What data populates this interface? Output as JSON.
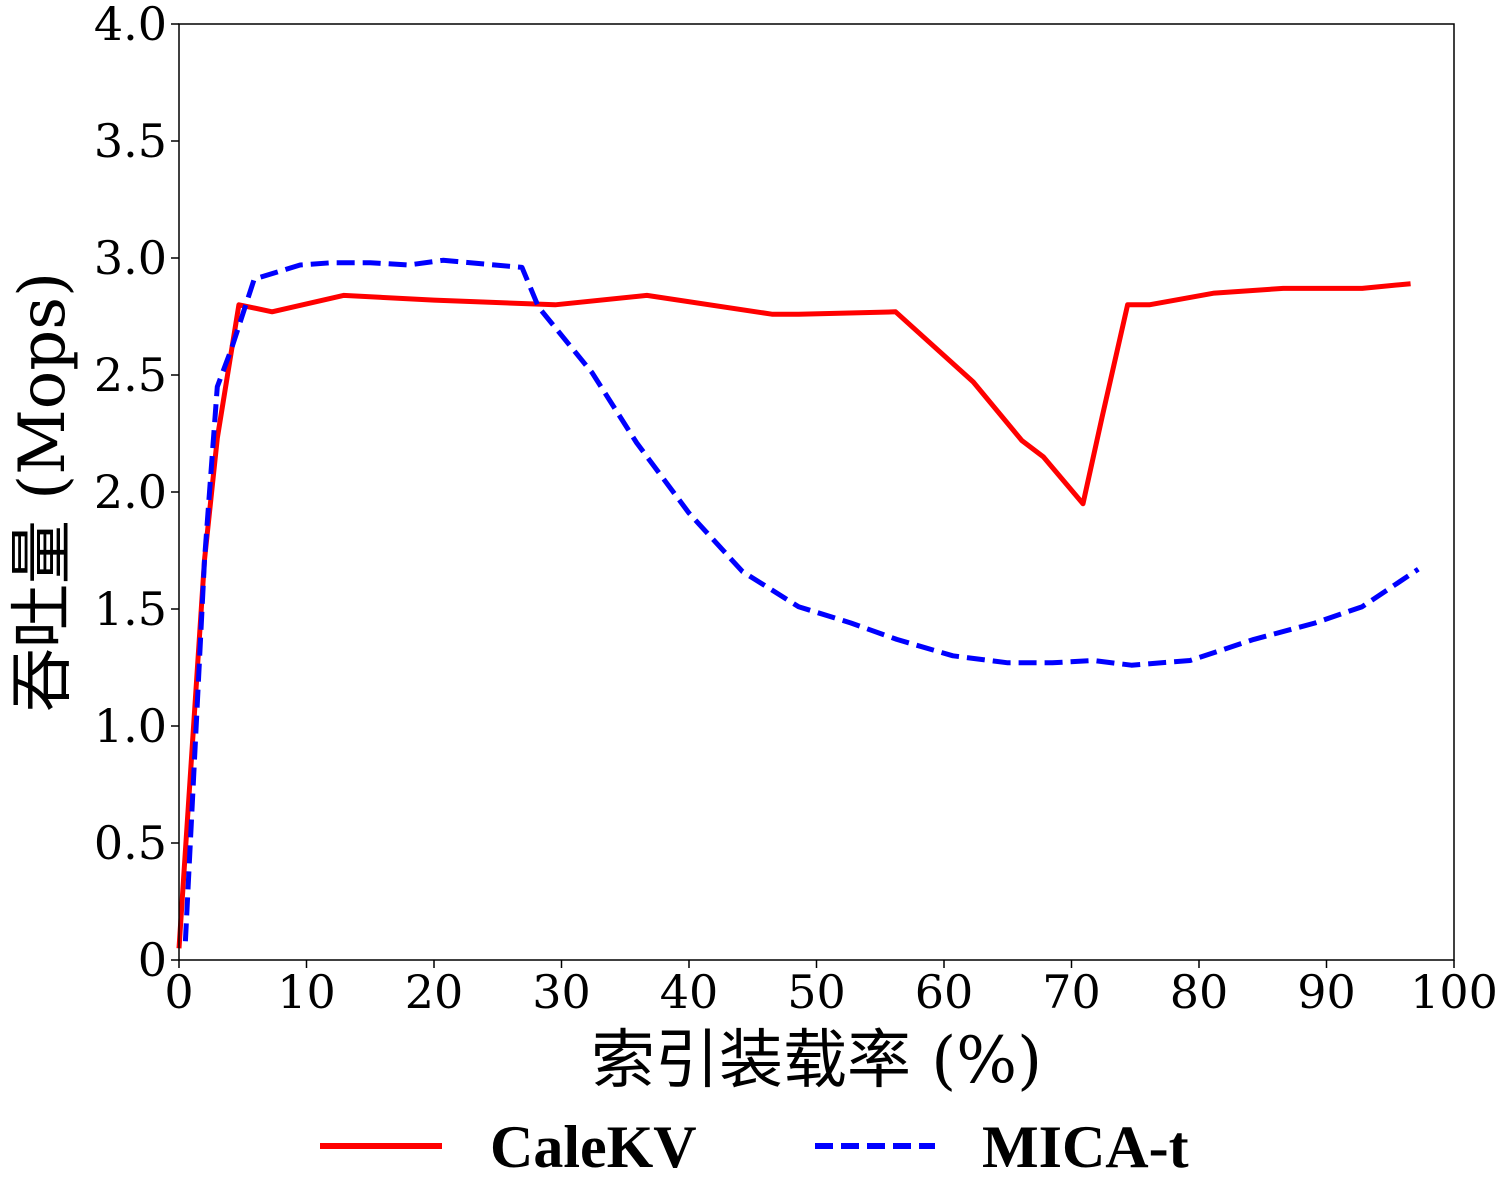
{
  "chart_data": {
    "type": "line",
    "title": "",
    "xlabel": "索引装载率 (%)",
    "ylabel": "吞吐量 (Mops)",
    "xlim": [
      0,
      100
    ],
    "ylim": [
      0,
      4.0
    ],
    "xticks": [
      0,
      10,
      20,
      30,
      40,
      50,
      60,
      70,
      80,
      90,
      100
    ],
    "xtick_labels": [
      "0",
      "10",
      "20",
      "30",
      "40",
      "50",
      "60",
      "70",
      "80",
      "90",
      "100"
    ],
    "yticks": [
      0,
      0.5,
      1.0,
      1.5,
      2.0,
      2.5,
      3.0,
      3.5,
      4.0
    ],
    "ytick_labels": [
      "0",
      "0.5",
      "1.0",
      "1.5",
      "2.0",
      "2.5",
      "3.0",
      "3.5",
      "4.0"
    ],
    "grid": false,
    "legend_position": "bottom-outside",
    "series": [
      {
        "name": "CaleKV",
        "color": "#ff0000",
        "dash": "solid",
        "x": [
          0,
          2,
          3,
          4.7,
          7.3,
          12.9,
          20,
          29.5,
          36.7,
          46.5,
          48.6,
          56.2,
          62.3,
          66.1,
          67.8,
          70.9,
          72.4,
          74.4,
          76.1,
          81.2,
          86.6,
          92.8,
          96.6
        ],
        "y": [
          0.05,
          1.71,
          2.23,
          2.8,
          2.77,
          2.84,
          2.82,
          2.8,
          2.84,
          2.76,
          2.76,
          2.77,
          2.47,
          2.22,
          2.15,
          1.95,
          2.32,
          2.8,
          2.8,
          2.85,
          2.87,
          2.87,
          2.89
        ]
      },
      {
        "name": "MICA-t",
        "color": "#0000ff",
        "dash": "dashed",
        "x": [
          0.5,
          2,
          3,
          4.1,
          5.9,
          9.5,
          12,
          15,
          18,
          20.7,
          26.9,
          28.2,
          32.4,
          35.9,
          40,
          44.2,
          48.6,
          52.7,
          56.3,
          60.7,
          65,
          68.5,
          71.7,
          74.7,
          79.3,
          84.3,
          89.1,
          92.8,
          97.2
        ],
        "y": [
          0.08,
          1.71,
          2.45,
          2.61,
          2.91,
          2.97,
          2.98,
          2.98,
          2.97,
          2.99,
          2.96,
          2.79,
          2.51,
          2.21,
          1.91,
          1.66,
          1.51,
          1.44,
          1.37,
          1.3,
          1.27,
          1.27,
          1.28,
          1.26,
          1.28,
          1.37,
          1.44,
          1.51,
          1.67
        ]
      }
    ]
  }
}
